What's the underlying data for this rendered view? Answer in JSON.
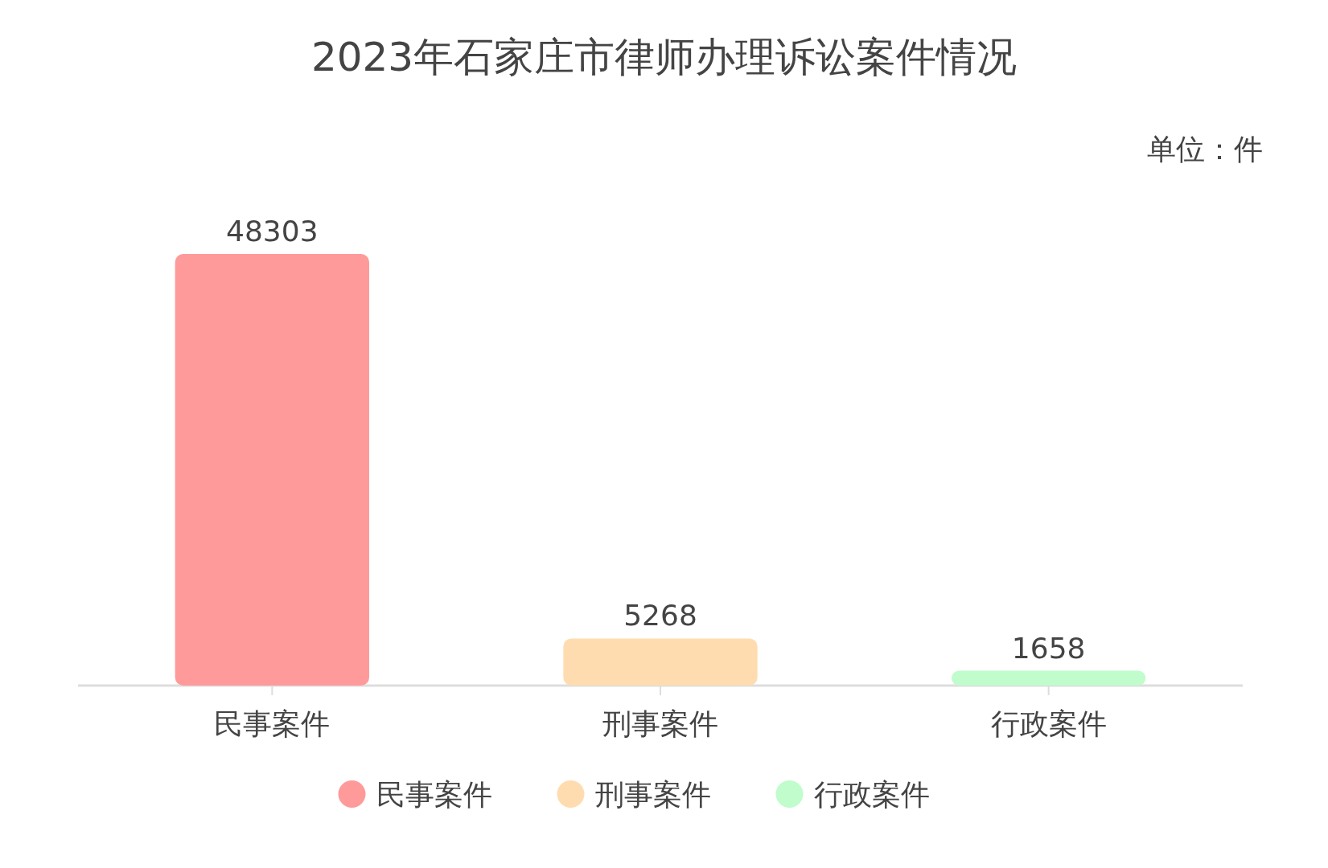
{
  "chart_data": {
    "type": "bar",
    "title": "2023年石家庄市律师办理诉讼案件情况",
    "categories": [
      "民事案件",
      "刑事案件",
      "行政案件"
    ],
    "stacked": true,
    "series": [
      {
        "name": "民事案件",
        "color": "#ff9a9a",
        "values": [
          48303,
          null,
          null
        ]
      },
      {
        "name": "刑事案件",
        "color": "#ffdcb0",
        "values": [
          null,
          5268,
          null
        ]
      },
      {
        "name": "行政案件",
        "color": "#c0fccc",
        "values": [
          null,
          null,
          1658
        ]
      }
    ],
    "data_labels": true,
    "legend": "bottom",
    "annotations": [
      "单位：件"
    ]
  }
}
